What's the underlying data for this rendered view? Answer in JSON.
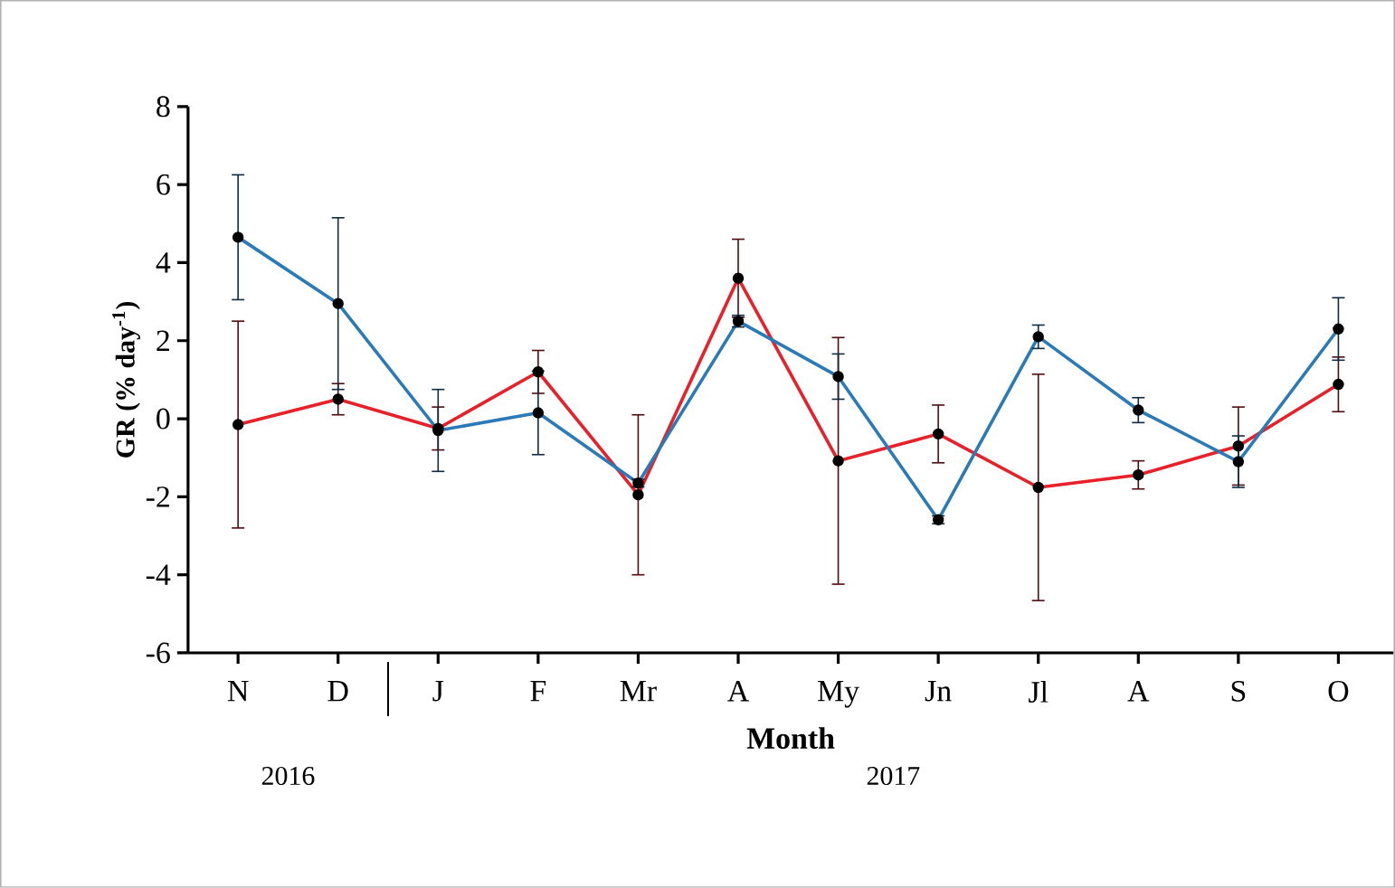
{
  "chart_data": {
    "type": "line",
    "xlabel": "Month",
    "ylabel": "GR (% day$^{-1}$)",
    "categories": [
      "N",
      "D",
      "J",
      "F",
      "Mr",
      "A",
      "My",
      "Jn",
      "Jl",
      "A",
      "S",
      "O"
    ],
    "series": [
      {
        "color": "#e8202a",
        "values": [
          -0.15,
          0.5,
          -0.25,
          1.2,
          -1.95,
          3.6,
          -1.08,
          -0.39,
          -1.76,
          -1.44,
          -0.7,
          0.88
        ],
        "errors": [
          2.65,
          0.4,
          0.55,
          0.55,
          2.05,
          1.0,
          3.16,
          0.74,
          2.9,
          0.36,
          1.0,
          0.7
        ]
      },
      {
        "color": "#2a7ab8",
        "values": [
          4.65,
          2.95,
          -0.3,
          0.15,
          -1.65,
          2.5,
          1.08,
          -2.59,
          2.1,
          0.22,
          -1.1,
          2.3
        ],
        "errors": [
          1.6,
          2.2,
          1.05,
          1.07,
          0.1,
          0.15,
          0.58,
          0.1,
          0.3,
          0.32,
          0.66,
          0.8
        ]
      }
    ],
    "ylim": [
      -6,
      8
    ],
    "yticks": [
      -6,
      -4,
      -2,
      0,
      2,
      4,
      6,
      8
    ],
    "marker": "circle",
    "line_style": "solid",
    "grid": false,
    "legend": false,
    "annotations": [
      "2016",
      "2017"
    ]
  }
}
